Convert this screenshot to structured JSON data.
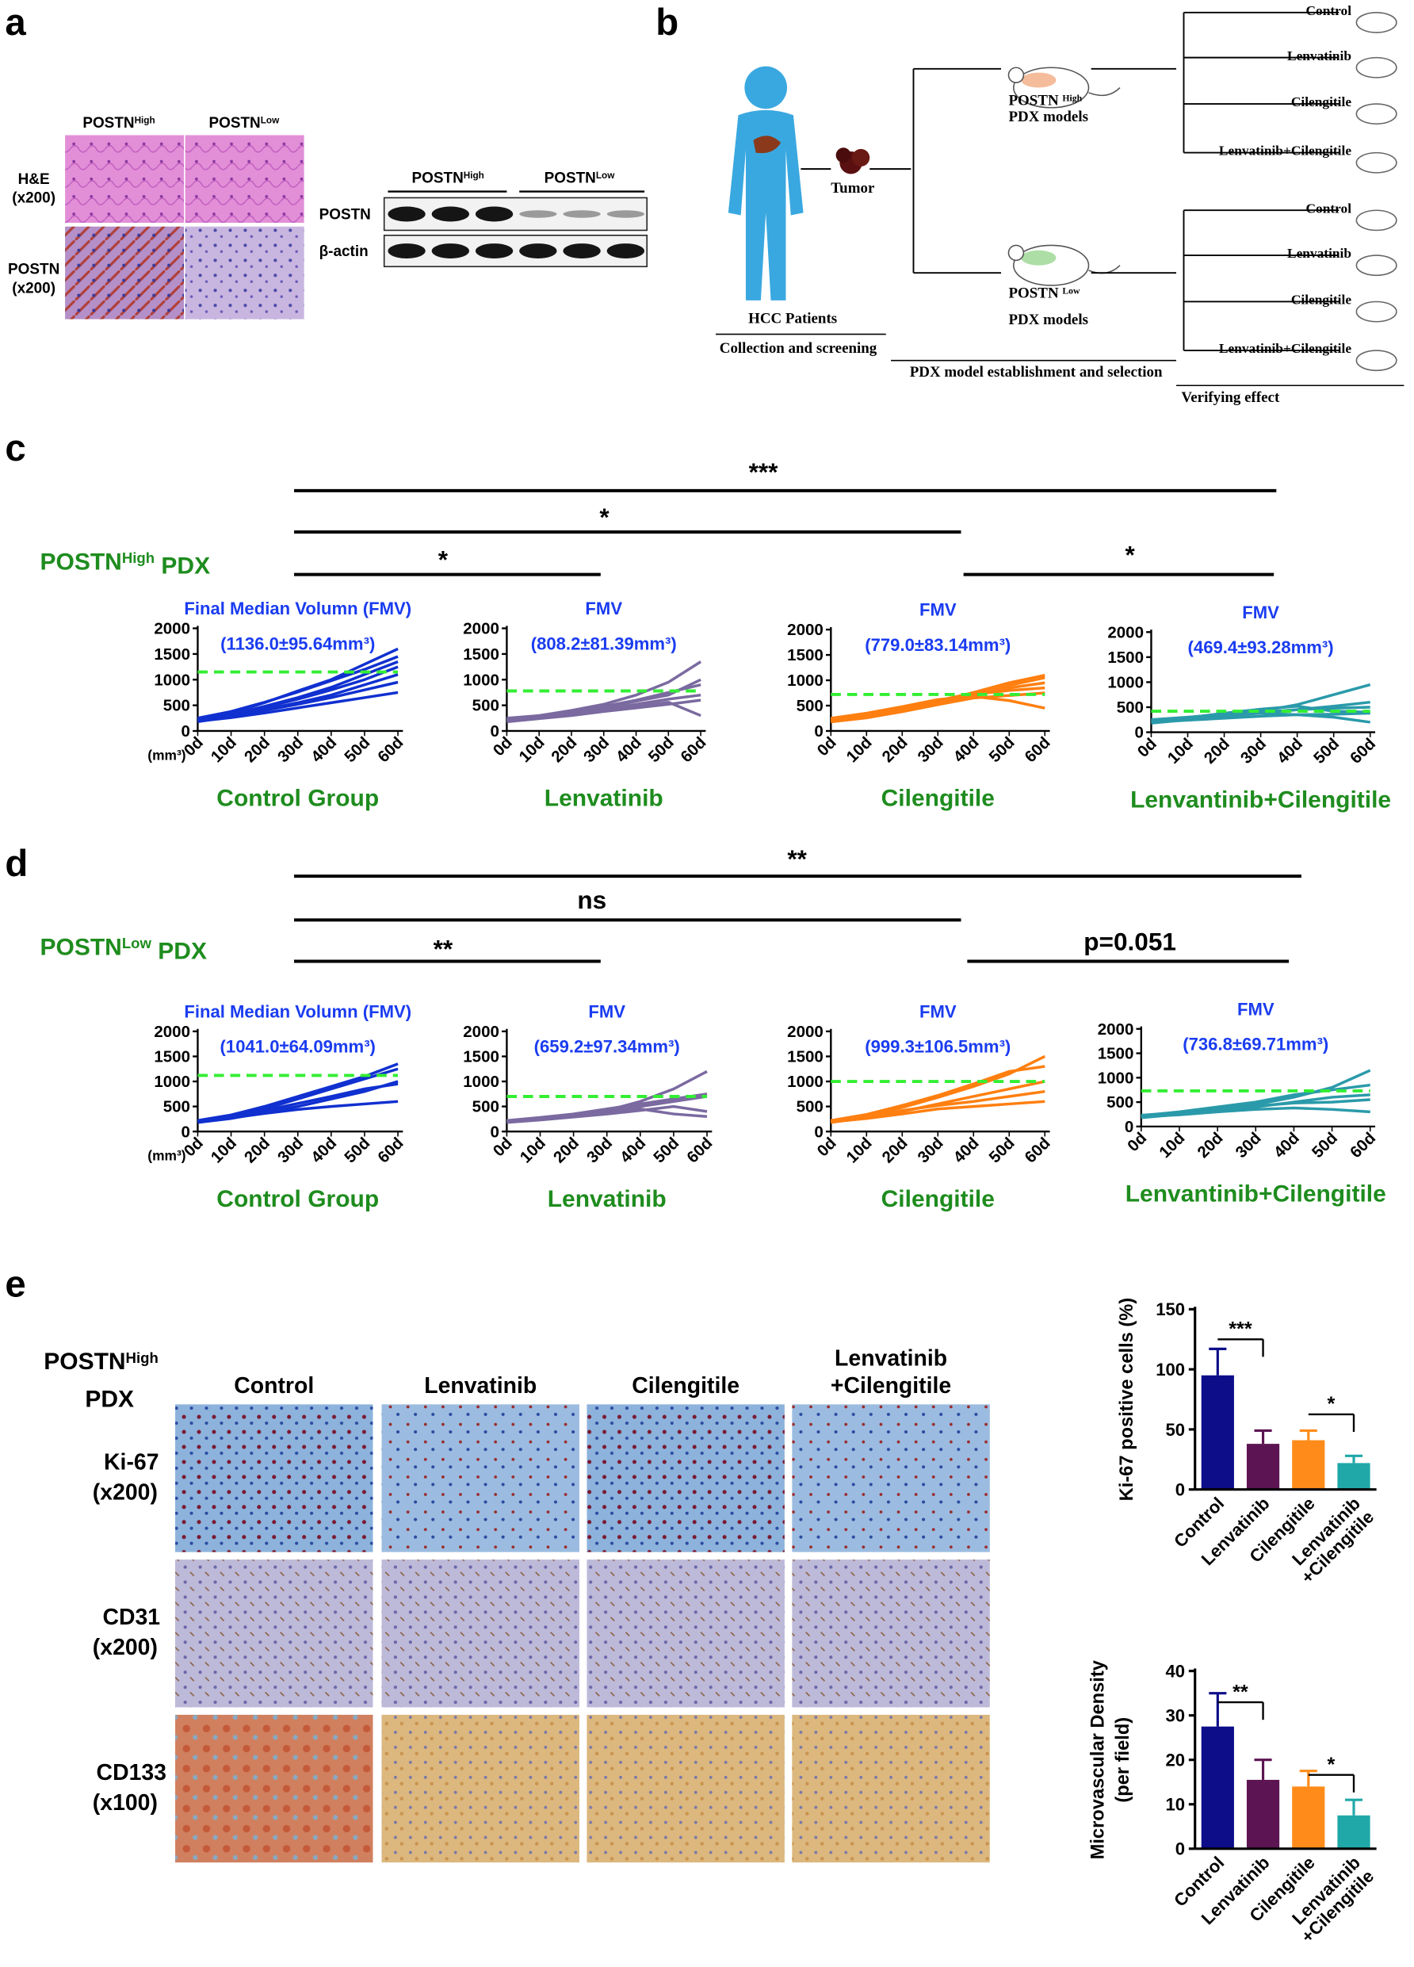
{
  "panel_a": {
    "label": "a",
    "ihc_columns": [
      {
        "base": "POSTN",
        "sup": "High"
      },
      {
        "base": "POSTN",
        "sup": "Low"
      }
    ],
    "ihc_rows": [
      [
        "H&E",
        "(x200)"
      ],
      [
        "POSTN",
        "(x200)"
      ]
    ],
    "blot_columns": [
      {
        "base": "POSTN",
        "sup": "High"
      },
      {
        "base": "POSTN",
        "sup": "Low"
      }
    ],
    "blot_rows": [
      "POSTN",
      "β-actin"
    ]
  },
  "panel_b": {
    "label": "b",
    "patients": "HCC Patients",
    "stage1": "Collection and screening",
    "tumor": "Tumor",
    "models": [
      {
        "base": "POSTN ",
        "sup": "High",
        "line2": "PDX models"
      },
      {
        "base": "POSTN ",
        "sup": "Low",
        "line2": "PDX models"
      }
    ],
    "stage2": "PDX model  establishment and selection",
    "treatments": [
      [
        "Control",
        "Lenvatinib",
        "Cilengitile",
        "Lenvatinib+Cilengitile"
      ],
      [
        "Control",
        "Lenvatinib",
        "Cilengitile",
        "Lenvatinib+Cilengitile"
      ]
    ],
    "stage3": "Verifying effect"
  },
  "panel_c": {
    "label": "c",
    "row_title": {
      "base": "POSTN",
      "sup": "High",
      "rest": " PDX"
    },
    "significance": [
      "***",
      "*",
      "*",
      "*"
    ]
  },
  "panel_d": {
    "label": "d",
    "row_title": {
      "base": "POSTN",
      "sup": "Low",
      "rest": " PDX"
    },
    "significance": [
      "**",
      "ns",
      "**",
      "p=0.051"
    ]
  },
  "panel_e": {
    "label": "e",
    "row_title": [
      {
        "base": "POSTN",
        "sup": "High"
      },
      "PDX"
    ],
    "columns": [
      [
        "Control"
      ],
      [
        "Lenvatinib"
      ],
      [
        "Cilengitile"
      ],
      [
        "Lenvatinib",
        "+Cilengitile"
      ]
    ],
    "rows": [
      [
        "Ki-67",
        "(x200)"
      ],
      [
        "CD31",
        "(x200)"
      ],
      [
        "CD133",
        "(x100)"
      ]
    ]
  },
  "chart_data": [
    {
      "type": "line",
      "title": "Final Median Volumn (FMV)",
      "subtitle": "(1136.0±95.64mm³)",
      "xlabel": "Control Group",
      "y_unit": "(mm³)",
      "categories": [
        "0d",
        "10d",
        "20d",
        "30d",
        "40d",
        "50d",
        "60d"
      ],
      "ylim": [
        0,
        2000
      ],
      "yticks": [
        0,
        500,
        1000,
        1500,
        2000
      ],
      "color": "#1030d0",
      "reference_line": 1150,
      "reference_color": "#33ee33",
      "series": [
        {
          "values": [
            200,
            320,
            480,
            650,
            850,
            1100,
            1350
          ]
        },
        {
          "values": [
            220,
            350,
            550,
            780,
            1000,
            1300,
            1600
          ]
        },
        {
          "values": [
            180,
            280,
            400,
            520,
            650,
            800,
            950
          ]
        },
        {
          "values": [
            250,
            380,
            560,
            760,
            980,
            1200,
            1450
          ]
        },
        {
          "values": [
            200,
            300,
            420,
            550,
            700,
            900,
            1100
          ]
        },
        {
          "values": [
            190,
            260,
            350,
            450,
            550,
            650,
            750
          ]
        },
        {
          "values": [
            230,
            330,
            460,
            620,
            800,
            1000,
            1250
          ]
        }
      ]
    },
    {
      "type": "line",
      "title": "FMV",
      "subtitle": "(808.2±81.39mm³)",
      "xlabel": "Lenvatinib",
      "categories": [
        "0d",
        "10d",
        "20d",
        "30d",
        "40d",
        "50d",
        "60d"
      ],
      "ylim": [
        0,
        2000
      ],
      "yticks": [
        0,
        500,
        1000,
        1500,
        2000
      ],
      "color": "#7a6aa0",
      "reference_line": 780,
      "reference_color": "#33ee33",
      "series": [
        {
          "values": [
            200,
            260,
            330,
            420,
            520,
            620,
            700
          ]
        },
        {
          "values": [
            220,
            300,
            400,
            520,
            700,
            950,
            1350
          ]
        },
        {
          "values": [
            180,
            240,
            300,
            380,
            450,
            520,
            600
          ]
        },
        {
          "values": [
            250,
            300,
            380,
            480,
            600,
            750,
            900
          ]
        },
        {
          "values": [
            200,
            250,
            320,
            400,
            480,
            560,
            300
          ]
        },
        {
          "values": [
            210,
            280,
            350,
            450,
            580,
            700,
            1000
          ]
        }
      ]
    },
    {
      "type": "line",
      "title": "FMV",
      "subtitle": "(779.0±83.14mm³)",
      "xlabel": "Cilengitile",
      "categories": [
        "0d",
        "10d",
        "20d",
        "30d",
        "40d",
        "50d",
        "60d"
      ],
      "ylim": [
        0,
        2000
      ],
      "yticks": [
        0,
        500,
        1000,
        1500,
        2000
      ],
      "color": "#ff7f10",
      "reference_line": 720,
      "reference_color": "#33ee33",
      "series": [
        {
          "values": [
            200,
            300,
            420,
            550,
            700,
            900,
            1050
          ]
        },
        {
          "values": [
            220,
            320,
            460,
            600,
            750,
            850,
            950
          ]
        },
        {
          "values": [
            180,
            260,
            380,
            520,
            650,
            700,
            750
          ]
        },
        {
          "values": [
            250,
            350,
            480,
            620,
            680,
            600,
            450
          ]
        },
        {
          "values": [
            200,
            280,
            400,
            560,
            720,
            800,
            850
          ]
        },
        {
          "values": [
            230,
            310,
            430,
            580,
            760,
            950,
            1100
          ]
        }
      ]
    },
    {
      "type": "line",
      "title": "FMV",
      "subtitle": "(469.4±93.28mm³)",
      "xlabel": "Lenvantinib+Cilengitile",
      "categories": [
        "0d",
        "10d",
        "20d",
        "30d",
        "40d",
        "50d",
        "60d"
      ],
      "ylim": [
        0,
        2000
      ],
      "yticks": [
        0,
        500,
        1000,
        1500,
        2000
      ],
      "color": "#2a9aaa",
      "reference_line": 420,
      "reference_color": "#33ee33",
      "series": [
        {
          "values": [
            200,
            260,
            330,
            420,
            550,
            750,
            950
          ]
        },
        {
          "values": [
            220,
            280,
            350,
            400,
            450,
            480,
            500
          ]
        },
        {
          "values": [
            250,
            300,
            360,
            380,
            350,
            300,
            200
          ]
        },
        {
          "values": [
            180,
            250,
            320,
            380,
            450,
            520,
            600
          ]
        },
        {
          "values": [
            230,
            290,
            380,
            460,
            520,
            420,
            400
          ]
        },
        {
          "values": [
            200,
            240,
            280,
            320,
            350,
            360,
            380
          ]
        }
      ]
    },
    {
      "type": "line",
      "title": "Final Median Volumn (FMV)",
      "subtitle": "(1041.0±64.09mm³)",
      "xlabel": "Control Group",
      "y_unit": "(mm³)",
      "categories": [
        "0d",
        "10d",
        "20d",
        "30d",
        "40d",
        "50d",
        "60d"
      ],
      "ylim": [
        0,
        2000
      ],
      "yticks": [
        0,
        500,
        1000,
        1500,
        2000
      ],
      "color": "#1030d0",
      "reference_line": 1120,
      "reference_color": "#33ee33",
      "series": [
        {
          "values": [
            200,
            300,
            450,
            650,
            850,
            1050,
            1250
          ]
        },
        {
          "values": [
            220,
            330,
            500,
            700,
            900,
            1100,
            1350
          ]
        },
        {
          "values": [
            180,
            260,
            380,
            500,
            650,
            800,
            1000
          ]
        },
        {
          "values": [
            210,
            300,
            420,
            560,
            700,
            850,
            950
          ]
        },
        {
          "values": [
            190,
            270,
            360,
            440,
            500,
            550,
            600
          ]
        }
      ]
    },
    {
      "type": "line",
      "title": "FMV",
      "subtitle": "(659.2±97.34mm³)",
      "xlabel": "Lenvatinib",
      "categories": [
        "0d",
        "10d",
        "20d",
        "30d",
        "40d",
        "50d",
        "60d"
      ],
      "ylim": [
        0,
        2000
      ],
      "yticks": [
        0,
        500,
        1000,
        1500,
        2000
      ],
      "color": "#7a6aa0",
      "reference_line": 700,
      "reference_color": "#33ee33",
      "series": [
        {
          "values": [
            200,
            250,
            320,
            420,
            600,
            850,
            1200
          ]
        },
        {
          "values": [
            220,
            280,
            350,
            450,
            550,
            650,
            750
          ]
        },
        {
          "values": [
            180,
            230,
            290,
            350,
            420,
            500,
            400
          ]
        },
        {
          "values": [
            200,
            240,
            300,
            380,
            450,
            350,
            300
          ]
        },
        {
          "values": [
            210,
            260,
            330,
            410,
            500,
            600,
            700
          ]
        }
      ]
    },
    {
      "type": "line",
      "title": "FMV",
      "subtitle": "(999.3±106.5mm³)",
      "xlabel": "Cilengitile",
      "categories": [
        "0d",
        "10d",
        "20d",
        "30d",
        "40d",
        "50d",
        "60d"
      ],
      "ylim": [
        0,
        2000
      ],
      "yticks": [
        0,
        500,
        1000,
        1500,
        2000
      ],
      "color": "#ff7f10",
      "reference_line": 1000,
      "reference_color": "#33ee33",
      "series": [
        {
          "values": [
            200,
            320,
            480,
            680,
            900,
            1150,
            1500
          ]
        },
        {
          "values": [
            220,
            340,
            520,
            720,
            950,
            1200,
            1300
          ]
        },
        {
          "values": [
            180,
            280,
            400,
            550,
            700,
            850,
            1000
          ]
        },
        {
          "values": [
            210,
            300,
            420,
            520,
            600,
            700,
            800
          ]
        },
        {
          "values": [
            190,
            260,
            350,
            450,
            500,
            550,
            600
          ]
        }
      ]
    },
    {
      "type": "line",
      "title": "FMV",
      "subtitle": "(736.8±69.71mm³)",
      "xlabel": "Lenvantinib+Cilengitile",
      "categories": [
        "0d",
        "10d",
        "20d",
        "30d",
        "40d",
        "50d",
        "60d"
      ],
      "ylim": [
        0,
        2000
      ],
      "yticks": [
        0,
        500,
        1000,
        1500,
        2000
      ],
      "color": "#2a9aaa",
      "reference_line": 730,
      "reference_color": "#33ee33",
      "series": [
        {
          "values": [
            200,
            270,
            350,
            450,
            600,
            800,
            1150
          ]
        },
        {
          "values": [
            220,
            300,
            400,
            500,
            650,
            750,
            850
          ]
        },
        {
          "values": [
            180,
            250,
            320,
            400,
            500,
            600,
            650
          ]
        },
        {
          "values": [
            230,
            290,
            350,
            420,
            480,
            500,
            550
          ]
        },
        {
          "values": [
            200,
            240,
            300,
            350,
            380,
            350,
            300
          ]
        }
      ]
    },
    {
      "type": "bar",
      "ylabel": [
        "Ki-67 positive cells (%)"
      ],
      "categories": [
        [
          "Control"
        ],
        [
          "Lenvatinib"
        ],
        [
          "Cilengitile"
        ],
        [
          "Lenvatinib",
          "+Cilengitile"
        ]
      ],
      "values": [
        95,
        38,
        41,
        22
      ],
      "errors": [
        22,
        11,
        8,
        6
      ],
      "colors": [
        "#0d0d8a",
        "#5c1552",
        "#ff8c1a",
        "#20a8a8"
      ],
      "ylim": [
        0,
        150
      ],
      "yticks": [
        0,
        50,
        100,
        150
      ],
      "annotations": [
        "***",
        "*"
      ]
    },
    {
      "type": "bar",
      "ylabel": [
        "Microvascular Density",
        "(per field)"
      ],
      "categories": [
        [
          "Control"
        ],
        [
          "Lenvatinib"
        ],
        [
          "Cilengitile"
        ],
        [
          "Lenvatinib",
          "+Cilengitile"
        ]
      ],
      "values": [
        27.5,
        15.5,
        14,
        7.5
      ],
      "errors": [
        7.5,
        4.5,
        3.5,
        3.5
      ],
      "colors": [
        "#0d0d8a",
        "#5c1552",
        "#ff8c1a",
        "#20a8a8"
      ],
      "ylim": [
        0,
        40
      ],
      "yticks": [
        0,
        10,
        20,
        30,
        40
      ],
      "annotations": [
        "**",
        "*"
      ]
    }
  ]
}
